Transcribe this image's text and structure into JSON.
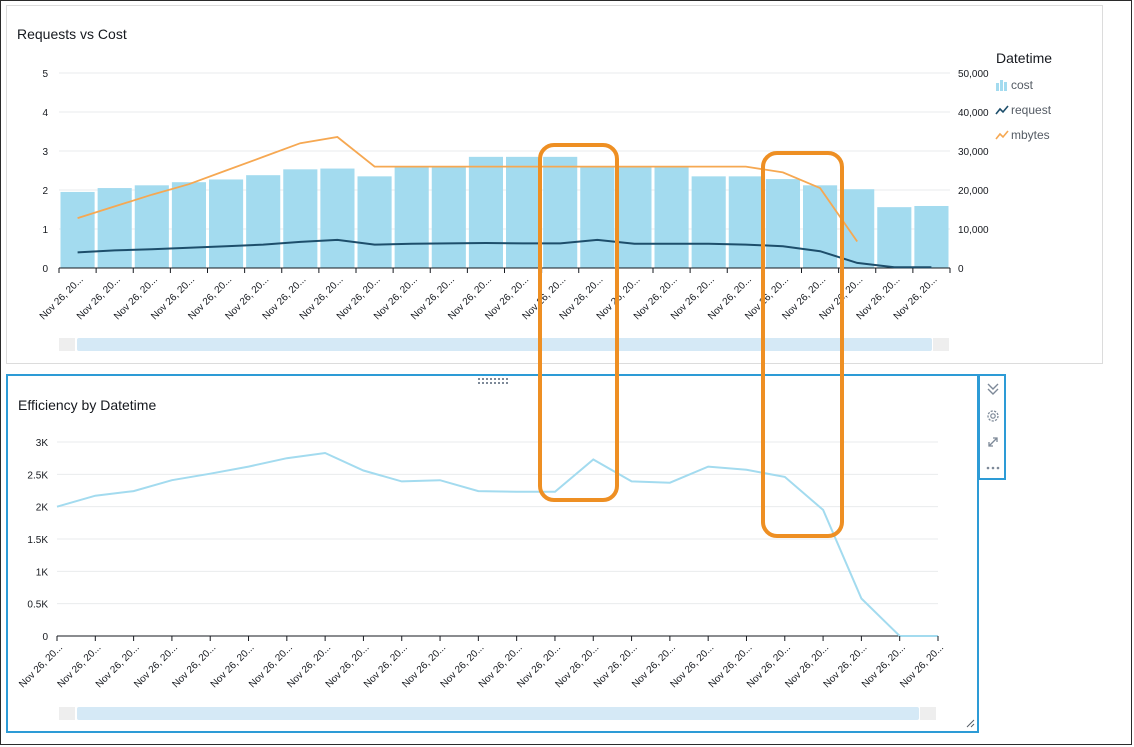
{
  "chart_data": [
    {
      "type": "bar",
      "title": "Requests vs Cost",
      "legend_title": "Datetime",
      "legend_position": "right",
      "categories": [
        "Nov 26, 20...",
        "Nov 26, 20...",
        "Nov 26, 20...",
        "Nov 26, 20...",
        "Nov 26, 20...",
        "Nov 26, 20...",
        "Nov 26, 20...",
        "Nov 26, 20...",
        "Nov 26, 20...",
        "Nov 26, 20...",
        "Nov 26, 20...",
        "Nov 26, 20...",
        "Nov 26, 20...",
        "Nov 26, 20...",
        "Nov 26, 20...",
        "Nov 26, 20...",
        "Nov 26, 20...",
        "Nov 26, 20...",
        "Nov 26, 20...",
        "Nov 26, 20...",
        "Nov 26, 20...",
        "Nov 26, 20...",
        "Nov 26, 20...",
        "Nov 26, 20..."
      ],
      "ylim": [
        0,
        5
      ],
      "y_ticks": [
        "0",
        "1",
        "2",
        "3",
        "4",
        "5"
      ],
      "y2lim": [
        0,
        50000
      ],
      "y2_ticks": [
        "0",
        "10,000",
        "20,000",
        "30,000",
        "40,000",
        "50,000"
      ],
      "grid": true,
      "series": [
        {
          "name": "cost",
          "kind": "bar",
          "axis": "left",
          "color": "#a3dbef",
          "values": [
            1.95,
            2.05,
            2.12,
            2.2,
            2.27,
            2.38,
            2.53,
            2.55,
            2.35,
            2.6,
            2.6,
            2.85,
            2.85,
            2.85,
            2.6,
            2.6,
            2.6,
            2.35,
            2.35,
            2.28,
            2.12,
            2.02,
            1.56,
            1.59
          ]
        },
        {
          "name": "request",
          "kind": "line",
          "axis": "left",
          "color": "#1d4e6b",
          "values": [
            0.4,
            0.45,
            0.48,
            0.52,
            0.56,
            0.6,
            0.67,
            0.72,
            0.6,
            0.62,
            0.63,
            0.64,
            0.63,
            0.63,
            0.72,
            0.62,
            0.62,
            0.62,
            0.6,
            0.56,
            0.43,
            0.13,
            0.02,
            0.02
          ]
        },
        {
          "name": "mbytes",
          "kind": "line",
          "axis": "right",
          "color": "#f6a852",
          "values": [
            12800,
            15800,
            18800,
            21500,
            25000,
            28500,
            32000,
            33600,
            26000,
            26000,
            26000,
            26000,
            26000,
            26000,
            26000,
            26000,
            26000,
            26000,
            26000,
            24500,
            20500,
            6800,
            null,
            null
          ]
        }
      ]
    },
    {
      "type": "line",
      "title": "Efficiency by Datetime",
      "categories": [
        "Nov 26, 20...",
        "Nov 26, 20...",
        "Nov 26, 20...",
        "Nov 26, 20...",
        "Nov 26, 20...",
        "Nov 26, 20...",
        "Nov 26, 20...",
        "Nov 26, 20...",
        "Nov 26, 20...",
        "Nov 26, 20...",
        "Nov 26, 20...",
        "Nov 26, 20...",
        "Nov 26, 20...",
        "Nov 26, 20...",
        "Nov 26, 20...",
        "Nov 26, 20...",
        "Nov 26, 20...",
        "Nov 26, 20...",
        "Nov 26, 20...",
        "Nov 26, 20...",
        "Nov 26, 20...",
        "Nov 26, 20...",
        "Nov 26, 20...",
        "Nov 26, 20..."
      ],
      "ylim": [
        0,
        3000
      ],
      "y_ticks": [
        "0",
        "0.5K",
        "1K",
        "1.5K",
        "2K",
        "2.5K",
        "3K"
      ],
      "grid": true,
      "series": [
        {
          "name": "",
          "kind": "line",
          "color": "#a3dbef",
          "values": [
            2000,
            2170,
            2240,
            2410,
            2510,
            2620,
            2750,
            2830,
            2560,
            2390,
            2410,
            2240,
            2230,
            2230,
            2730,
            2390,
            2370,
            2620,
            2570,
            2460,
            1950,
            580,
            0,
            0
          ]
        }
      ]
    }
  ],
  "annotations": {
    "highlight_color": "#ee8f23"
  },
  "tools": {
    "collapse_icon": "double-chevron-down-icon",
    "settings_icon": "gear-icon",
    "expand_icon": "expand-arrows-icon",
    "more_icon": "ellipsis-icon"
  }
}
